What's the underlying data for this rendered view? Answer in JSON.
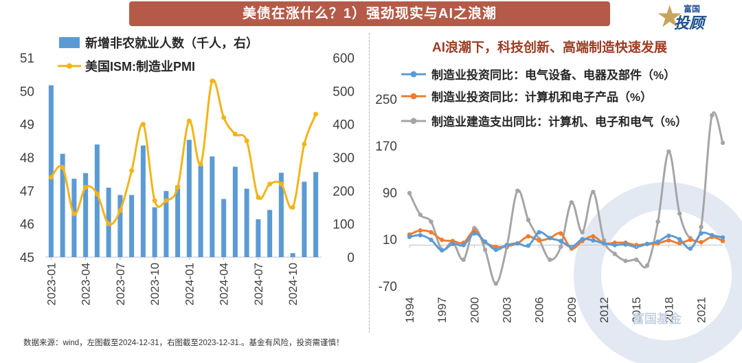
{
  "header": {
    "title": "美债在涨什么？1）强劲现实与AI之浪潮"
  },
  "logo": {
    "top": "富国",
    "main": "投顾"
  },
  "footer": {
    "source": "数据来源：wind，左图截至2024-12-31，右图截至2023-12-31.。基金有风险，投资需谨慎！"
  },
  "watermark": "富国基金",
  "colors": {
    "title_bg": "#b55a48",
    "bar": "#5b9bd5",
    "pmi": "#f3b418",
    "s_blue": "#5b9bd5",
    "s_orange": "#ed7d31",
    "s_gray": "#a5a5a5"
  },
  "chart_data": [
    {
      "type": "bar",
      "title": "",
      "legend": [
        "新增非农就业人数（千人，右）",
        "美国ISM:制造业PMI"
      ],
      "legend_placement": "top-left",
      "grid": false,
      "x": [
        "2023-01",
        "2023-02",
        "2023-03",
        "2023-04",
        "2023-05",
        "2023-06",
        "2023-07",
        "2023-08",
        "2023-09",
        "2023-10",
        "2023-11",
        "2023-12",
        "2024-01",
        "2024-02",
        "2024-03",
        "2024-04",
        "2024-05",
        "2024-06",
        "2024-07",
        "2024-08",
        "2024-09",
        "2024-10",
        "2024-11",
        "2024-12"
      ],
      "x_ticks": [
        "2023-01",
        "2023-04",
        "2023-07",
        "2023-10",
        "2024-01",
        "2024-04",
        "2024-07",
        "2024-10"
      ],
      "series": [
        {
          "name": "新增非农就业人数（千人，右）",
          "type": "bar",
          "axis": "right",
          "values": [
            517,
            311,
            236,
            253,
            339,
            209,
            187,
            187,
            336,
            150,
            199,
            216,
            353,
            275,
            303,
            175,
            272,
            206,
            114,
            142,
            254,
            12,
            227,
            256
          ]
        },
        {
          "name": "美国ISM:制造业PMI",
          "type": "line",
          "axis": "left",
          "values": [
            47.4,
            47.7,
            46.3,
            47.1,
            46.9,
            46.0,
            46.4,
            47.6,
            49.0,
            46.7,
            46.7,
            47.1,
            49.1,
            47.8,
            50.3,
            49.2,
            48.7,
            48.5,
            46.8,
            47.2,
            47.2,
            46.5,
            48.4,
            49.3
          ]
        }
      ],
      "y_left": {
        "ylim": [
          45,
          51
        ],
        "ticks": [
          45,
          46,
          47,
          48,
          49,
          50,
          51
        ]
      },
      "y_right": {
        "ylim": [
          0,
          600
        ],
        "ticks": [
          0,
          100,
          200,
          300,
          400,
          500,
          600
        ]
      }
    },
    {
      "type": "line",
      "title": "AI浪潮下，科技创新、高端制造快速发展",
      "legend_placement": "top-left",
      "grid": false,
      "x": [
        1994,
        1995,
        1996,
        1997,
        1998,
        1999,
        2000,
        2001,
        2002,
        2003,
        2004,
        2005,
        2006,
        2007,
        2008,
        2009,
        2010,
        2011,
        2012,
        2013,
        2014,
        2015,
        2016,
        2017,
        2018,
        2019,
        2020,
        2021,
        2022,
        2023
      ],
      "x_ticks": [
        1994,
        1997,
        2000,
        2003,
        2006,
        2009,
        2012,
        2015,
        2018,
        2021
      ],
      "ylim": [
        -70,
        250
      ],
      "y_ticks": [
        -70,
        10,
        90,
        170,
        250
      ],
      "series": [
        {
          "name": "制造业投资同比：电气设备、电器及部件（%）",
          "values": [
            14,
            17,
            9,
            -9,
            2,
            0,
            20,
            6,
            -8,
            0,
            3,
            -1,
            22,
            12,
            7,
            -3,
            10,
            8,
            3,
            0,
            1,
            -3,
            2,
            6,
            16,
            10,
            -6,
            20,
            17,
            13
          ]
        },
        {
          "name": "制造业投资同比：计算机和电子产品（%）",
          "values": [
            18,
            25,
            22,
            9,
            7,
            4,
            24,
            5,
            -3,
            -2,
            3,
            15,
            8,
            12,
            20,
            -6,
            7,
            15,
            3,
            4,
            4,
            0,
            2,
            3,
            8,
            3,
            9,
            5,
            14,
            7
          ]
        },
        {
          "name": "制造业建造支出同比：计算机、电子和电气（%）",
          "values": [
            89,
            52,
            40,
            -8,
            5,
            -25,
            29,
            -8,
            -66,
            -4,
            93,
            43,
            10,
            -25,
            -3,
            73,
            22,
            91,
            8,
            -15,
            -27,
            -25,
            -35,
            40,
            160,
            54,
            12,
            31,
            222,
            175
          ]
        }
      ]
    }
  ]
}
